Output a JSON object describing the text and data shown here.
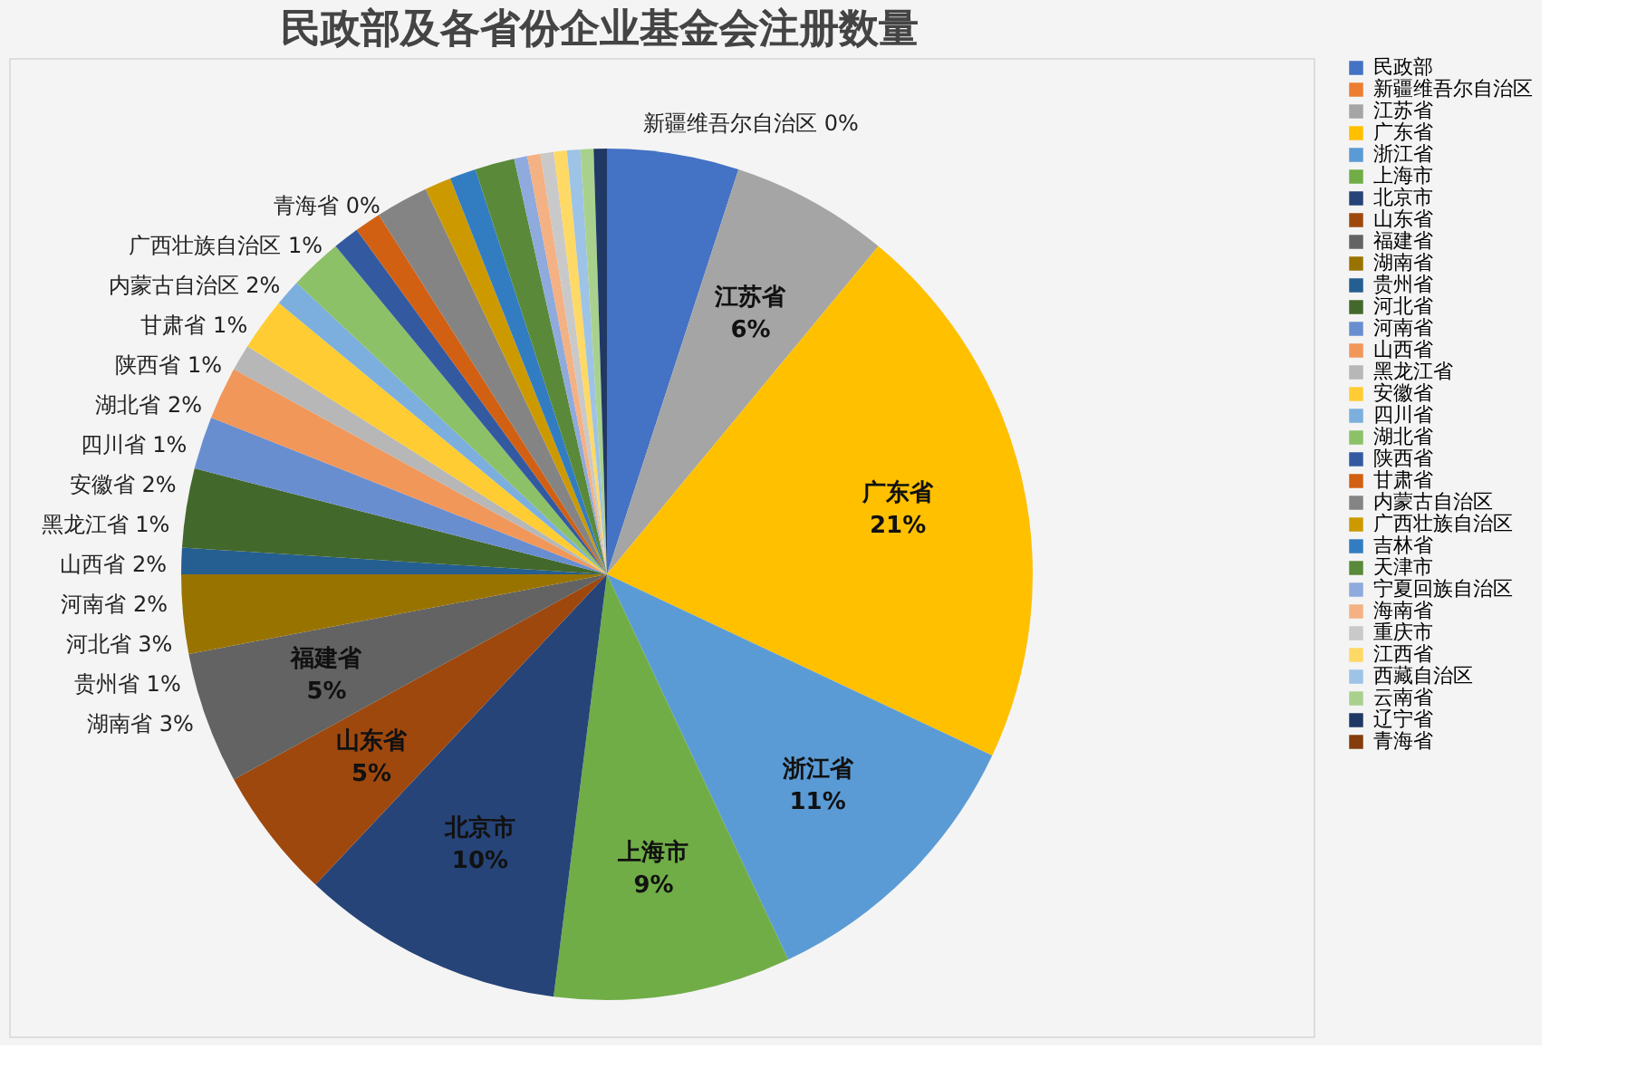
{
  "chart_data": {
    "type": "pie",
    "title": "民政部及各省份企业基金会注册数量",
    "categories": [
      "民政部",
      "新疆维吾尔自治区",
      "江苏省",
      "广东省",
      "浙江省",
      "上海市",
      "北京市",
      "山东省",
      "福建省",
      "湖南省",
      "贵州省",
      "河北省",
      "河南省",
      "山西省",
      "黑龙江省",
      "安徽省",
      "四川省",
      "湖北省",
      "陕西省",
      "甘肃省",
      "内蒙古自治区",
      "广西壮族自治区",
      "吉林省",
      "天津市",
      "宁夏回族自治区",
      "海南省",
      "重庆市",
      "江西省",
      "西藏自治区",
      "云南省",
      "辽宁省",
      "青海省"
    ],
    "values": [
      5,
      0,
      6,
      21,
      11,
      9,
      10,
      5,
      5,
      3,
      1,
      3,
      2,
      2,
      1,
      2,
      1,
      2,
      1,
      1,
      2,
      1,
      1,
      1.5,
      0.5,
      0.5,
      0.5,
      0.5,
      0.5,
      0.5,
      0.5,
      0
    ],
    "value_labels": [
      null,
      "0%",
      "6%",
      "21%",
      "11%",
      "9%",
      "10%",
      "5%",
      "5%",
      "3%",
      "1%",
      "3%",
      "2%",
      "2%",
      "1%",
      "2%",
      "1%",
      "2%",
      "1%",
      "1%",
      "2%",
      "1%",
      null,
      null,
      null,
      null,
      null,
      null,
      null,
      null,
      null,
      "0%"
    ],
    "colors": [
      "#4472c4",
      "#ed7d31",
      "#a5a5a5",
      "#ffc000",
      "#5b9bd5",
      "#70ad47",
      "#264478",
      "#9e480e",
      "#636363",
      "#997300",
      "#255e91",
      "#43682b",
      "#698ed0",
      "#f1975a",
      "#b7b7b7",
      "#ffcd33",
      "#7cafdd",
      "#8cc168",
      "#335aa1",
      "#d26012",
      "#848484",
      "#cc9a00",
      "#327dc2",
      "#5a8a39",
      "#8faadc",
      "#f4b183",
      "#c9c9c9",
      "#ffd966",
      "#9dc3e6",
      "#a9d18e",
      "#203864",
      "#843c0c"
    ],
    "legend": "right"
  }
}
